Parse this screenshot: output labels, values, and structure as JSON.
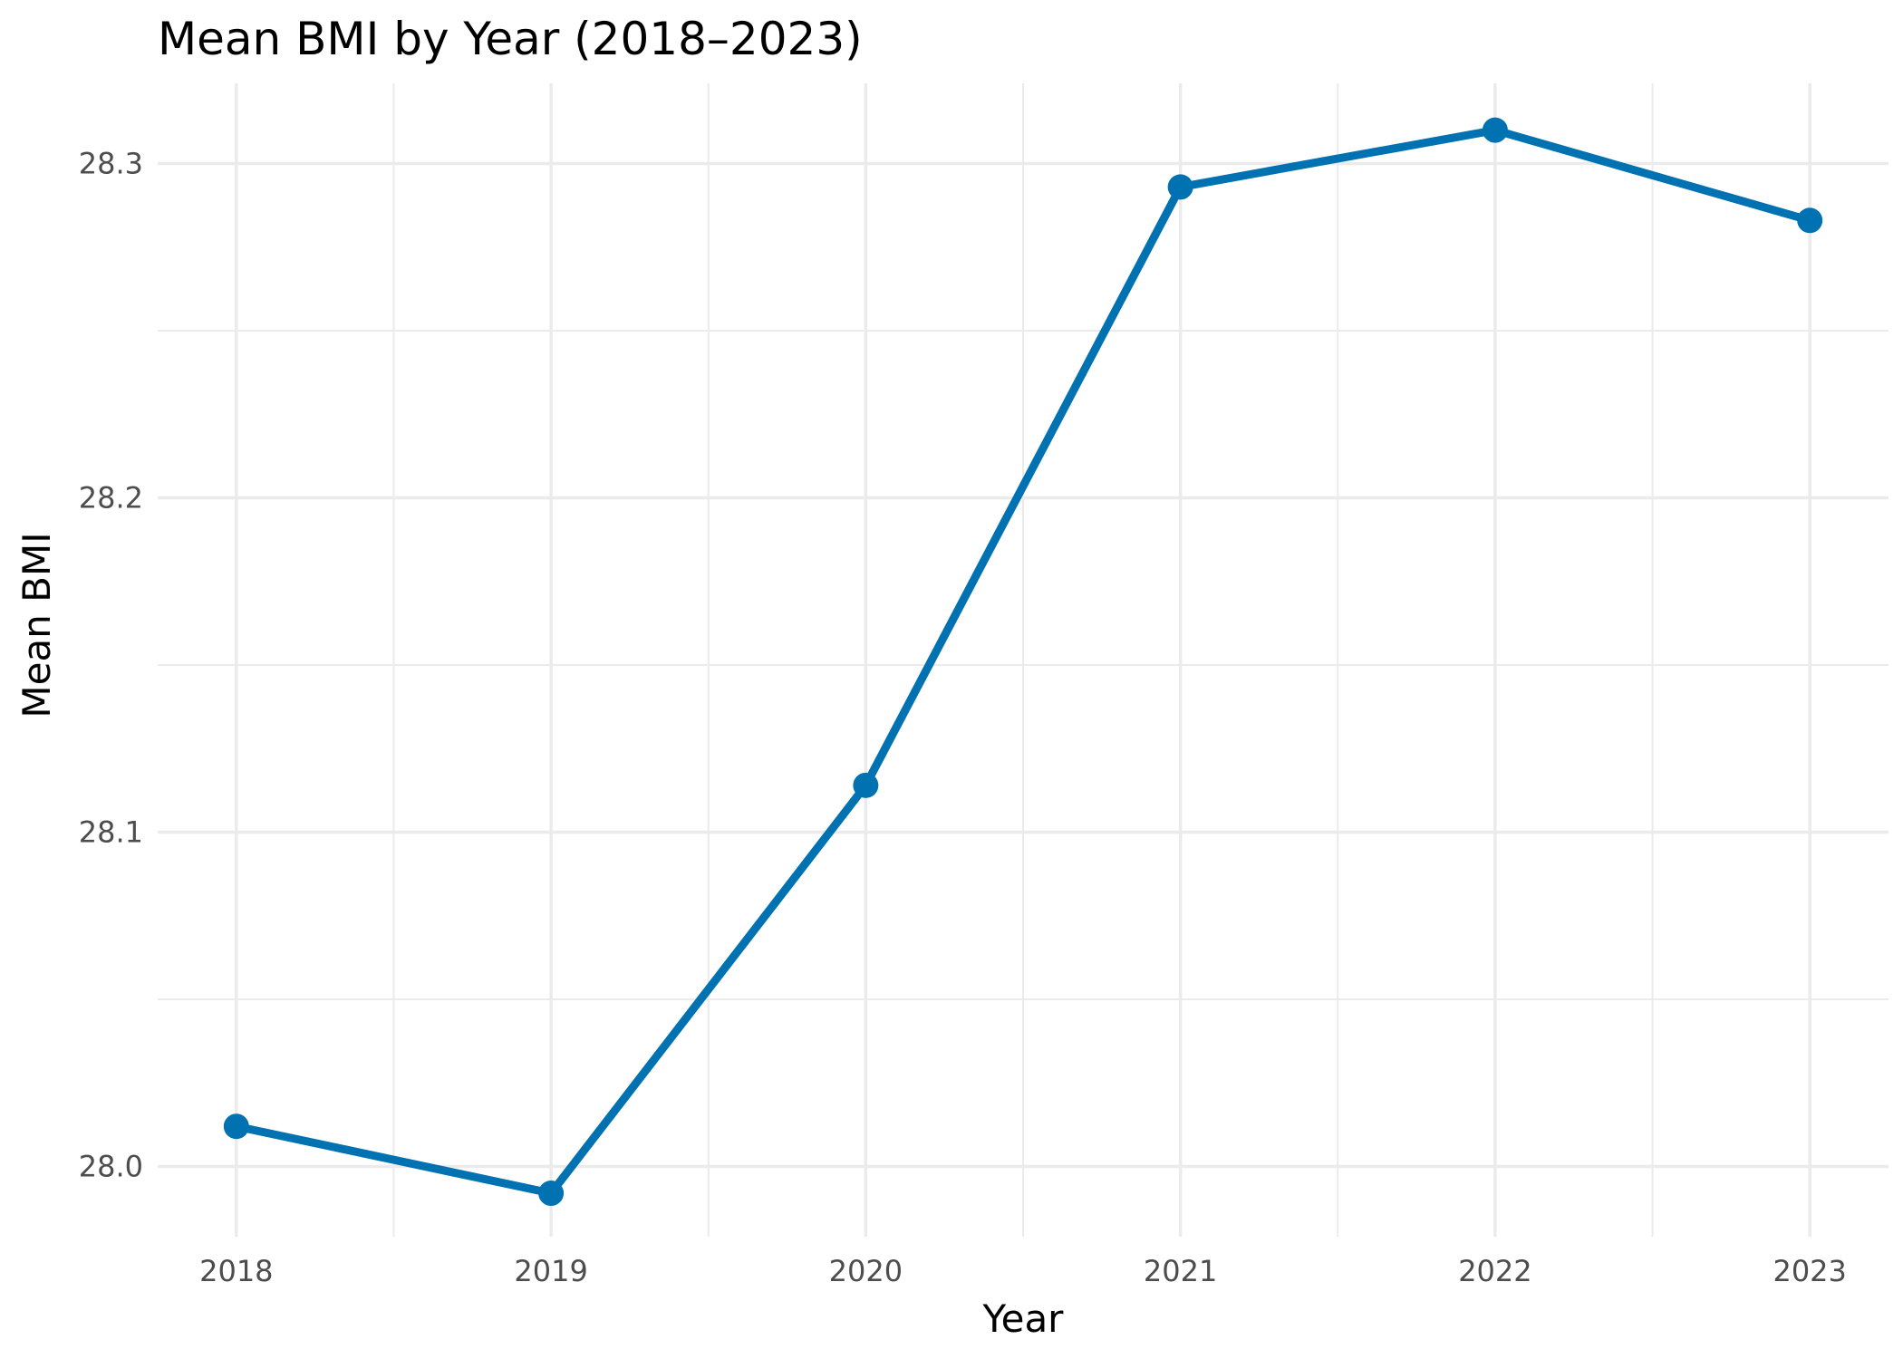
{
  "chart_data": {
    "type": "line",
    "title": "Mean BMI by Year (2018–2023)",
    "xlabel": "Year",
    "ylabel": "Mean BMI",
    "x": [
      2018,
      2019,
      2020,
      2021,
      2022,
      2023
    ],
    "x_tick_labels": [
      "2018",
      "2019",
      "2020",
      "2021",
      "2022",
      "2023"
    ],
    "y_ticks": [
      28.0,
      28.1,
      28.2,
      28.3
    ],
    "y_tick_labels": [
      "28.0",
      "28.1",
      "28.2",
      "28.3"
    ],
    "series": [
      {
        "values": [
          28.012,
          27.992,
          28.114,
          28.293,
          28.31,
          28.283
        ]
      }
    ],
    "xlim": [
      2017.75,
      2023.25
    ],
    "ylim": [
      27.979,
      28.324
    ],
    "grid": true,
    "legend": "none",
    "line_color": "#0072B2"
  }
}
